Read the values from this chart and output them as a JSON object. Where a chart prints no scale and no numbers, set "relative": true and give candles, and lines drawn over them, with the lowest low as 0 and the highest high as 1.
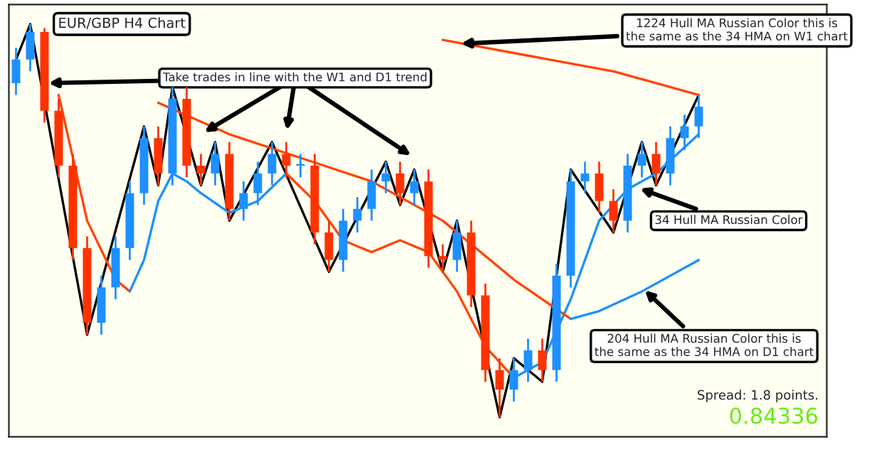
{
  "chart_data": {
    "type": "candlestick",
    "title": "EUR/GBP H4 Chart",
    "relative": true,
    "categories": [
      null,
      null,
      null,
      null,
      null,
      null,
      null,
      null,
      null,
      null,
      null,
      null,
      null,
      null,
      null,
      null,
      null,
      null,
      null,
      null,
      null,
      null,
      null,
      null,
      null,
      null,
      null,
      null,
      null,
      null,
      null,
      null,
      null,
      null,
      null,
      null,
      null,
      null,
      null,
      null,
      null,
      null,
      null,
      null,
      null,
      null,
      null,
      null,
      null
    ],
    "ohlc": [
      [
        0.85,
        0.94,
        0.82,
        0.91
      ],
      [
        0.91,
        1.0,
        0.88,
        0.98
      ],
      [
        0.98,
        0.99,
        0.75,
        0.78
      ],
      [
        0.78,
        0.81,
        0.61,
        0.64
      ],
      [
        0.64,
        0.67,
        0.4,
        0.43
      ],
      [
        0.43,
        0.46,
        0.21,
        0.24
      ],
      [
        0.24,
        0.36,
        0.21,
        0.33
      ],
      [
        0.33,
        0.46,
        0.3,
        0.43
      ],
      [
        0.43,
        0.6,
        0.4,
        0.57
      ],
      [
        0.57,
        0.74,
        0.54,
        0.71
      ],
      [
        0.71,
        0.74,
        0.59,
        0.62
      ],
      [
        0.62,
        0.84,
        0.59,
        0.81
      ],
      [
        0.81,
        0.84,
        0.61,
        0.64
      ],
      [
        0.64,
        0.67,
        0.59,
        0.62
      ],
      [
        0.62,
        0.7,
        0.59,
        0.67
      ],
      [
        0.67,
        0.7,
        0.5,
        0.53
      ],
      [
        0.53,
        0.6,
        0.5,
        0.57
      ],
      [
        0.57,
        0.65,
        0.54,
        0.62
      ],
      [
        0.62,
        0.7,
        0.59,
        0.67
      ],
      [
        0.67,
        0.7,
        0.61,
        0.64
      ],
      [
        0.64,
        0.67,
        0.61,
        0.64
      ],
      [
        0.64,
        0.67,
        0.44,
        0.47
      ],
      [
        0.47,
        0.5,
        0.37,
        0.4
      ],
      [
        0.4,
        0.53,
        0.37,
        0.5
      ],
      [
        0.5,
        0.56,
        0.47,
        0.53
      ],
      [
        0.53,
        0.63,
        0.5,
        0.6
      ],
      [
        0.6,
        0.65,
        0.57,
        0.62
      ],
      [
        0.62,
        0.65,
        0.54,
        0.57
      ],
      [
        0.57,
        0.63,
        0.54,
        0.6
      ],
      [
        0.6,
        0.63,
        0.38,
        0.41
      ],
      [
        0.41,
        0.44,
        0.37,
        0.4
      ],
      [
        0.4,
        0.5,
        0.37,
        0.47
      ],
      [
        0.47,
        0.5,
        0.28,
        0.31
      ],
      [
        0.31,
        0.34,
        0.09,
        0.12
      ],
      [
        0.12,
        0.15,
        0.0,
        0.07
      ],
      [
        0.07,
        0.15,
        0.04,
        0.12
      ],
      [
        0.12,
        0.2,
        0.09,
        0.17
      ],
      [
        0.17,
        0.2,
        0.09,
        0.12
      ],
      [
        0.12,
        0.39,
        0.09,
        0.36
      ],
      [
        0.36,
        0.63,
        0.33,
        0.6
      ],
      [
        0.6,
        0.65,
        0.57,
        0.62
      ],
      [
        0.62,
        0.65,
        0.52,
        0.55
      ],
      [
        0.55,
        0.58,
        0.47,
        0.5
      ],
      [
        0.5,
        0.67,
        0.47,
        0.64
      ],
      [
        0.64,
        0.7,
        0.61,
        0.67
      ],
      [
        0.67,
        0.7,
        0.59,
        0.62
      ],
      [
        0.62,
        0.74,
        0.59,
        0.71
      ],
      [
        0.71,
        0.77,
        0.68,
        0.74
      ],
      [
        0.74,
        0.82,
        0.71,
        0.79
      ]
    ],
    "series": [
      {
        "type": "line",
        "color": "#000000",
        "values": [
          0.91,
          1.0,
          null,
          null,
          null,
          0.21,
          null,
          null,
          null,
          0.74,
          0.59,
          0.84,
          null,
          0.59,
          0.7,
          0.5,
          null,
          null,
          0.7,
          null,
          null,
          null,
          0.37,
          null,
          null,
          null,
          0.65,
          0.54,
          0.63,
          null,
          0.37,
          0.5,
          null,
          null,
          0.0,
          0.15,
          null,
          0.09,
          null,
          0.63,
          null,
          null,
          0.47,
          null,
          0.7,
          0.59,
          null,
          null,
          0.82
        ]
      },
      {
        "type": "line",
        "color": "#ff4500",
        "values": [
          null,
          null,
          null,
          null,
          null,
          null,
          null,
          null,
          null,
          null,
          null,
          null,
          null,
          null,
          null,
          null,
          null,
          null,
          null,
          null,
          null,
          null,
          null,
          null,
          null,
          null,
          null,
          null,
          null,
          null,
          0.96,
          null,
          null,
          0.94,
          null,
          null,
          0.92,
          null,
          null,
          0.9,
          null,
          null,
          0.88,
          null,
          null,
          0.85,
          null,
          null,
          0.82
        ]
      },
      {
        "type": "line",
        "color": "#ff4500",
        "values": [
          null,
          null,
          null,
          0.82,
          null,
          0.5,
          null,
          0.35,
          0.32,
          null,
          null,
          null,
          null,
          null,
          null,
          null,
          null,
          null,
          null,
          null,
          null,
          null,
          null,
          null,
          null,
          null,
          null,
          null,
          null,
          null,
          null,
          null,
          null,
          null,
          null,
          null,
          null,
          null,
          null,
          null,
          null,
          null,
          null,
          null,
          null,
          null,
          null,
          null,
          null
        ]
      },
      {
        "type": "line",
        "color": "#1e90ff",
        "values": [
          null,
          null,
          null,
          null,
          null,
          null,
          null,
          null,
          0.32,
          0.4,
          0.55,
          0.62,
          0.6,
          0.57,
          null,
          0.52,
          null,
          0.55,
          null,
          0.62,
          null,
          null,
          null,
          null,
          null,
          null,
          null,
          null,
          null,
          null,
          null,
          null,
          null,
          null,
          null,
          null,
          null,
          null,
          null,
          null,
          null,
          null,
          null,
          null,
          null,
          null,
          null,
          null,
          null
        ]
      },
      {
        "type": "line",
        "color": "#ff4500",
        "values": [
          null,
          null,
          null,
          null,
          null,
          null,
          null,
          null,
          null,
          null,
          null,
          null,
          null,
          null,
          null,
          null,
          null,
          null,
          null,
          0.62,
          null,
          0.55,
          null,
          0.45,
          null,
          0.42,
          null,
          0.45,
          null,
          0.42,
          null,
          0.32,
          null,
          0.18,
          null,
          0.1,
          null,
          null,
          null,
          null,
          null,
          null,
          null,
          null,
          null,
          null,
          null,
          null,
          null
        ]
      },
      {
        "type": "line",
        "color": "#1e90ff",
        "values": [
          null,
          null,
          null,
          null,
          null,
          null,
          null,
          null,
          null,
          null,
          null,
          null,
          null,
          null,
          null,
          null,
          null,
          null,
          null,
          null,
          null,
          null,
          null,
          null,
          null,
          null,
          null,
          null,
          null,
          null,
          null,
          null,
          null,
          null,
          null,
          0.1,
          null,
          0.14,
          null,
          0.3,
          null,
          0.5,
          null,
          0.58,
          null,
          0.62,
          null,
          null,
          0.72
        ]
      },
      {
        "type": "line",
        "color": "#ff4500",
        "values": [
          null,
          null,
          null,
          null,
          null,
          null,
          null,
          null,
          null,
          null,
          0.8,
          null,
          null,
          null,
          null,
          0.72,
          null,
          null,
          null,
          null,
          0.66,
          null,
          null,
          null,
          null,
          0.6,
          null,
          null,
          null,
          null,
          0.5,
          null,
          null,
          null,
          null,
          0.35,
          null,
          null,
          null,
          0.25,
          null,
          null,
          null,
          null,
          null,
          null,
          null,
          null,
          null
        ]
      },
      {
        "type": "line",
        "color": "#1e90ff",
        "values": [
          null,
          null,
          null,
          null,
          null,
          null,
          null,
          null,
          null,
          null,
          null,
          null,
          null,
          null,
          null,
          null,
          null,
          null,
          null,
          null,
          null,
          null,
          null,
          null,
          null,
          null,
          null,
          null,
          null,
          null,
          null,
          null,
          null,
          null,
          null,
          null,
          null,
          null,
          null,
          0.25,
          null,
          0.27,
          null,
          null,
          0.32,
          null,
          null,
          null,
          0.4
        ]
      }
    ],
    "annotations": [
      "Take trades in line with the W1 and D1 trend",
      "1224 Hull MA Russian Color this is\nthe same as the 34 HMA on W1 chart",
      "34 Hull MA Russian Color",
      "204 Hull MA Russian Color this is\nthe same as the 34 HMA on D1 chart",
      "Spread: 1.8 points.",
      "0.84336"
    ]
  }
}
